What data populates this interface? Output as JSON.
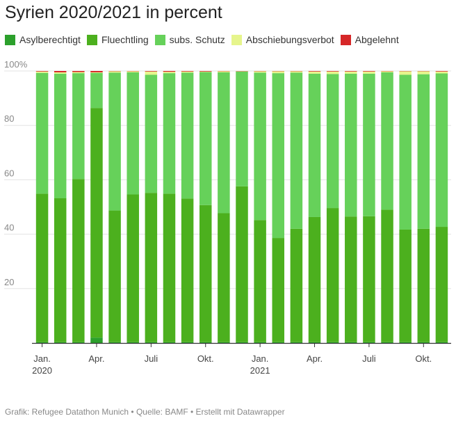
{
  "title": "Syrien 2020/2021 in percent",
  "footer": "Grafik: Refugee Datathon Munich • Quelle: BAMF • Erstellt mit Datawrapper",
  "legend": [
    {
      "name": "legend-asylberechtigt",
      "label": "Asylberechtigt",
      "color": "#2ca02c"
    },
    {
      "name": "legend-fluechtling",
      "label": "Fluechtling",
      "color": "#4cb01e"
    },
    {
      "name": "legend-subs-schutz",
      "label": "subs. Schutz",
      "color": "#66d15a"
    },
    {
      "name": "legend-abschiebungsverbot",
      "label": "Abschiebungsverbot",
      "color": "#e6f58c"
    },
    {
      "name": "legend-abgelehnt",
      "label": "Abgelehnt",
      "color": "#d62728"
    }
  ],
  "chart_data": {
    "type": "bar",
    "stacked": true,
    "title": "Syrien 2020/2021 in percent",
    "ylim": [
      0,
      100
    ],
    "yticks": [
      {
        "value": 20,
        "label": "20"
      },
      {
        "value": 40,
        "label": "40"
      },
      {
        "value": 60,
        "label": "60"
      },
      {
        "value": 80,
        "label": "80"
      },
      {
        "value": 100,
        "label": "100%"
      }
    ],
    "categories": [
      "2020-01",
      "2020-02",
      "2020-03",
      "2020-04",
      "2020-05",
      "2020-06",
      "2020-07",
      "2020-08",
      "2020-09",
      "2020-10",
      "2020-11",
      "2020-12",
      "2021-01",
      "2021-02",
      "2021-03",
      "2021-04",
      "2021-05",
      "2021-06",
      "2021-07",
      "2021-08",
      "2021-09",
      "2021-10",
      "2021-11"
    ],
    "x_tick_labels": [
      {
        "index": 0,
        "lines": [
          "Jan.",
          "2020"
        ]
      },
      {
        "index": 3,
        "lines": [
          "Apr."
        ]
      },
      {
        "index": 6,
        "lines": [
          "Juli"
        ]
      },
      {
        "index": 9,
        "lines": [
          "Okt."
        ]
      },
      {
        "index": 12,
        "lines": [
          "Jan.",
          "2021"
        ]
      },
      {
        "index": 15,
        "lines": [
          "Apr."
        ]
      },
      {
        "index": 18,
        "lines": [
          "Juli"
        ]
      },
      {
        "index": 21,
        "lines": [
          "Okt."
        ]
      }
    ],
    "series": [
      {
        "name": "Asylberechtigt",
        "color": "#2ca02c",
        "values": [
          0.3,
          0.3,
          0.3,
          2.0,
          0.3,
          0.3,
          0.3,
          0.3,
          0.3,
          0.3,
          0.3,
          0.3,
          0.3,
          0.3,
          0.3,
          0.3,
          0.3,
          0.3,
          0.3,
          0.3,
          0.3,
          0.3,
          0.3
        ]
      },
      {
        "name": "Fluechtling",
        "color": "#4cb01e",
        "values": [
          54.6,
          52.9,
          60.0,
          84.4,
          48.4,
          54.3,
          54.9,
          54.6,
          52.8,
          50.4,
          47.4,
          57.3,
          44.9,
          38.3,
          41.7,
          46.0,
          49.3,
          46.2,
          46.3,
          48.7,
          41.4,
          41.7,
          42.4
        ]
      },
      {
        "name": "subs. Schutz",
        "color": "#66d15a",
        "values": [
          44.4,
          45.8,
          38.9,
          12.9,
          50.7,
          44.9,
          43.4,
          44.3,
          46.3,
          48.9,
          51.8,
          42.2,
          54.2,
          60.6,
          57.4,
          52.7,
          49.3,
          52.5,
          52.4,
          50.5,
          56.9,
          56.8,
          56.4
        ]
      },
      {
        "name": "Abschiebungsverbot",
        "color": "#e6f58c",
        "values": [
          0.5,
          0.5,
          0.4,
          0.2,
          0.5,
          0.4,
          1.2,
          0.5,
          0.4,
          0.2,
          0.4,
          0.1,
          0.5,
          0.7,
          0.5,
          0.8,
          0.9,
          0.8,
          0.8,
          0.4,
          1.3,
          1.1,
          0.7
        ]
      },
      {
        "name": "Abgelehnt",
        "color": "#d62728",
        "values": [
          0.2,
          0.5,
          0.4,
          0.5,
          0.1,
          0.1,
          0.2,
          0.3,
          0.2,
          0.2,
          0.1,
          0.1,
          0.1,
          0.1,
          0.1,
          0.2,
          0.2,
          0.2,
          0.2,
          0.1,
          0.1,
          0.1,
          0.2
        ]
      }
    ]
  }
}
